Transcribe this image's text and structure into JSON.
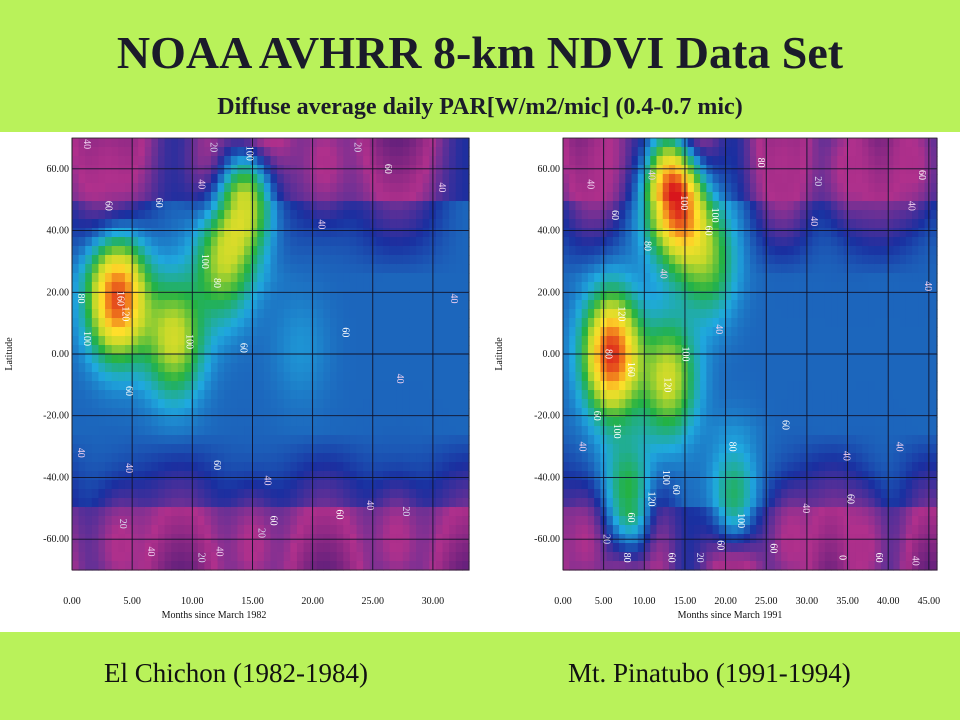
{
  "title": "NOAA AVHRR 8-km NDVI Data Set",
  "subtitle": "Diffuse average daily PAR[W/m2/mic]  (0.4-0.7 mic)",
  "captions": {
    "left": "El Chichon (1982-1984)",
    "right": "Mt. Pinatubo (1991-1994)"
  },
  "chart_data": [
    {
      "type": "heatmap",
      "title": "",
      "xlabel": "Months since March 1982",
      "ylabel": "Latitude",
      "xlim": [
        0,
        33
      ],
      "ylim": [
        -70,
        70
      ],
      "xticks": [
        0,
        5,
        10,
        15,
        20,
        25,
        30
      ],
      "xtick_labels": [
        "0.00",
        "5.00",
        "10.00",
        "15.00",
        "20.00",
        "25.00",
        "30.00"
      ],
      "yticks": [
        60,
        40,
        20,
        0,
        -20,
        -40,
        -60
      ],
      "ytick_labels": [
        "60.00",
        "40.00",
        "20.00",
        "0.00",
        "-20.00",
        "-40.00",
        "-60.00"
      ],
      "grid": true,
      "colorscale": [
        "#5a1e7a",
        "#b0308c",
        "#1a2fa0",
        "#1fa9df",
        "#23b244",
        "#c4d92a",
        "#ffe02a",
        "#f07a1c",
        "#d8161c"
      ],
      "value_range": [
        0,
        170
      ],
      "features": [
        {
          "x": 3.8,
          "y": 18,
          "value": 160
        },
        {
          "x": 8.5,
          "y": 5,
          "value": 110
        },
        {
          "x": 14.5,
          "y": 48,
          "value": 100
        },
        {
          "x": 12.5,
          "y": 30,
          "value": 100
        },
        {
          "x": 19,
          "y": 2,
          "value": 60
        },
        {
          "x": 3,
          "y": 60,
          "value": 20
        },
        {
          "x": 12,
          "y": 62,
          "value": 20
        },
        {
          "x": 21,
          "y": 62,
          "value": 20
        },
        {
          "x": 4,
          "y": -62,
          "value": 20
        },
        {
          "x": 15,
          "y": -62,
          "value": 20
        },
        {
          "x": 27,
          "y": -60,
          "value": 20
        }
      ],
      "contour_labels": [
        {
          "x": 3.8,
          "y": 18,
          "text": "160"
        },
        {
          "x": 4.2,
          "y": 13,
          "text": "120"
        },
        {
          "x": 1,
          "y": 5,
          "text": "100"
        },
        {
          "x": 0.5,
          "y": 18,
          "text": "80"
        },
        {
          "x": 10.8,
          "y": 30,
          "text": "100"
        },
        {
          "x": 11.8,
          "y": 23,
          "text": "80"
        },
        {
          "x": 9.5,
          "y": 4,
          "text": "100"
        },
        {
          "x": 14.5,
          "y": 65,
          "text": "100"
        },
        {
          "x": 14,
          "y": 2,
          "text": "60"
        },
        {
          "x": 2.8,
          "y": 48,
          "text": "60"
        },
        {
          "x": 7,
          "y": 49,
          "text": "60"
        },
        {
          "x": 4.5,
          "y": -12,
          "text": "60"
        },
        {
          "x": 22.5,
          "y": 7,
          "text": "60"
        },
        {
          "x": 1,
          "y": 68,
          "text": "40"
        },
        {
          "x": 10.5,
          "y": 55,
          "text": "40"
        },
        {
          "x": 20.5,
          "y": 42,
          "text": "40"
        },
        {
          "x": 30.5,
          "y": 54,
          "text": "40"
        },
        {
          "x": 31.5,
          "y": 18,
          "text": "40"
        },
        {
          "x": 0.5,
          "y": -32,
          "text": "40"
        },
        {
          "x": 4.5,
          "y": -37,
          "text": "40"
        },
        {
          "x": 16,
          "y": -41,
          "text": "40"
        },
        {
          "x": 24.5,
          "y": -49,
          "text": "40"
        },
        {
          "x": 12,
          "y": -64,
          "text": "40"
        },
        {
          "x": 27,
          "y": -8,
          "text": "40"
        },
        {
          "x": 11.5,
          "y": 67,
          "text": "20"
        },
        {
          "x": 23.5,
          "y": 67,
          "text": "20"
        },
        {
          "x": 4,
          "y": -55,
          "text": "20"
        },
        {
          "x": 15.5,
          "y": -58,
          "text": "20"
        },
        {
          "x": 27.5,
          "y": -51,
          "text": "20"
        },
        {
          "x": 26,
          "y": 60,
          "text": "60"
        },
        {
          "x": 16.5,
          "y": -54,
          "text": "60"
        },
        {
          "x": 22,
          "y": -52,
          "text": "60"
        },
        {
          "x": 11.8,
          "y": -36,
          "text": "60"
        },
        {
          "x": 10.5,
          "y": -66,
          "text": "20"
        },
        {
          "x": 6.3,
          "y": -64,
          "text": "40"
        }
      ]
    },
    {
      "type": "heatmap",
      "title": "",
      "xlabel": "Months since March 1991",
      "ylabel": "Latitude",
      "xlim": [
        0,
        46
      ],
      "ylim": [
        -70,
        70
      ],
      "xticks": [
        0,
        5,
        10,
        15,
        20,
        25,
        30,
        35,
        40,
        45
      ],
      "xtick_labels": [
        "0.00",
        "5.00",
        "10.00",
        "15.00",
        "20.00",
        "25.00",
        "30.00",
        "35.00",
        "40.00",
        "45.00"
      ],
      "yticks": [
        60,
        40,
        20,
        0,
        -20,
        -40,
        -60
      ],
      "ytick_labels": [
        "60.00",
        "40.00",
        "20.00",
        "0.00",
        "-20.00",
        "-40.00",
        "-60.00"
      ],
      "grid": true,
      "colorscale": [
        "#5a1e7a",
        "#b0308c",
        "#1a2fa0",
        "#1fa9df",
        "#23b244",
        "#c4d92a",
        "#ffe02a",
        "#f07a1c",
        "#d8161c"
      ],
      "value_range": [
        0,
        170
      ],
      "features": [
        {
          "x": 6,
          "y": 0,
          "value": 165
        },
        {
          "x": 13,
          "y": -8,
          "value": 110
        },
        {
          "x": 14.5,
          "y": 46,
          "value": 130
        },
        {
          "x": 12,
          "y": 55,
          "value": 100
        },
        {
          "x": 18,
          "y": 30,
          "value": 90
        },
        {
          "x": 8,
          "y": -45,
          "value": 90
        },
        {
          "x": 21,
          "y": -45,
          "value": 80
        },
        {
          "x": 5,
          "y": 62,
          "value": 20
        },
        {
          "x": 11,
          "y": 62,
          "value": 20
        },
        {
          "x": 27,
          "y": 62,
          "value": 20
        },
        {
          "x": 35,
          "y": 60,
          "value": 20
        },
        {
          "x": 43,
          "y": 62,
          "value": 20
        },
        {
          "x": 3,
          "y": -60,
          "value": 20
        },
        {
          "x": 10,
          "y": -62,
          "value": 20
        },
        {
          "x": 28,
          "y": -60,
          "value": 20
        },
        {
          "x": 37,
          "y": -62,
          "value": 20
        }
      ],
      "contour_labels": [
        {
          "x": 8,
          "y": -5,
          "text": "160"
        },
        {
          "x": 12.5,
          "y": -10,
          "text": "120"
        },
        {
          "x": 6.8,
          "y": 13,
          "text": "120"
        },
        {
          "x": 14.7,
          "y": 0,
          "text": "100"
        },
        {
          "x": 6.3,
          "y": -25,
          "text": "100"
        },
        {
          "x": 5.2,
          "y": 0,
          "text": "80"
        },
        {
          "x": 10,
          "y": 35,
          "text": "80"
        },
        {
          "x": 14.5,
          "y": 49,
          "text": "100"
        },
        {
          "x": 17.5,
          "y": 40,
          "text": "60"
        },
        {
          "x": 18.3,
          "y": 45,
          "text": "100"
        },
        {
          "x": 18.8,
          "y": 8,
          "text": "40"
        },
        {
          "x": 3.8,
          "y": -20,
          "text": "60"
        },
        {
          "x": 2,
          "y": -30,
          "text": "40"
        },
        {
          "x": 3,
          "y": 55,
          "text": "40"
        },
        {
          "x": 6,
          "y": 45,
          "text": "60"
        },
        {
          "x": 10.5,
          "y": 58,
          "text": "40"
        },
        {
          "x": 12,
          "y": 26,
          "text": "40"
        },
        {
          "x": 24,
          "y": 62,
          "text": "80"
        },
        {
          "x": 31,
          "y": 56,
          "text": "20"
        },
        {
          "x": 30.5,
          "y": 43,
          "text": "40"
        },
        {
          "x": 43.8,
          "y": 58,
          "text": "60"
        },
        {
          "x": 42.5,
          "y": 48,
          "text": "40"
        },
        {
          "x": 44.5,
          "y": 22,
          "text": "40"
        },
        {
          "x": 27,
          "y": -23,
          "text": "60"
        },
        {
          "x": 34.5,
          "y": -33,
          "text": "40"
        },
        {
          "x": 35,
          "y": -47,
          "text": "60"
        },
        {
          "x": 29.5,
          "y": -50,
          "text": "40"
        },
        {
          "x": 41,
          "y": -30,
          "text": "40"
        },
        {
          "x": 20.5,
          "y": -30,
          "text": "80"
        },
        {
          "x": 13.5,
          "y": -44,
          "text": "60"
        },
        {
          "x": 12.3,
          "y": -40,
          "text": "100"
        },
        {
          "x": 10.5,
          "y": -47,
          "text": "120"
        },
        {
          "x": 8,
          "y": -53,
          "text": "60"
        },
        {
          "x": 21.5,
          "y": -54,
          "text": "100"
        },
        {
          "x": 19,
          "y": -62,
          "text": "60"
        },
        {
          "x": 25.5,
          "y": -63,
          "text": "60"
        },
        {
          "x": 5,
          "y": -60,
          "text": "20"
        },
        {
          "x": 7.5,
          "y": -66,
          "text": "80"
        },
        {
          "x": 13,
          "y": -66,
          "text": "60"
        },
        {
          "x": 16.5,
          "y": -66,
          "text": "20"
        },
        {
          "x": 34,
          "y": -66,
          "text": "0"
        },
        {
          "x": 38.5,
          "y": -66,
          "text": "60"
        },
        {
          "x": 43,
          "y": -67,
          "text": "40"
        }
      ]
    }
  ]
}
